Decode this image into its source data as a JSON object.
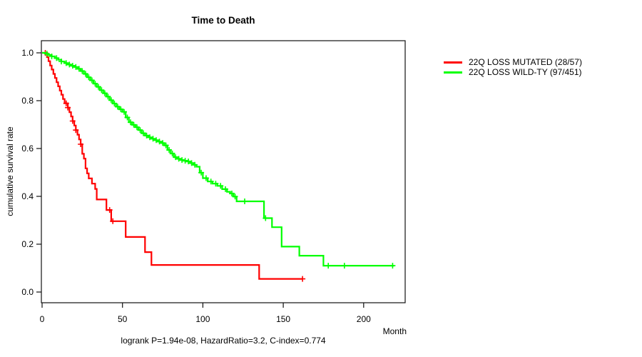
{
  "title": "Time to Death",
  "x_axis_label": "Month",
  "y_axis_label": "cumulative survival rate",
  "footer": "logrank P=1.94e-08, HazardRatio=3.2, C-index=0.774",
  "legend": [
    {
      "label": "22Q LOSS MUTATED (28/57)",
      "color": "#ff0000"
    },
    {
      "label": "22Q LOSS WILD-TY (97/451)",
      "color": "#00ff00"
    }
  ],
  "chart_data": {
    "type": "line",
    "subtype": "kaplan-meier-survival",
    "title": "Time to Death",
    "xlabel": "Month",
    "ylabel": "cumulative survival rate",
    "annotation": "logrank P=1.94e-08, HazardRatio=3.2, C-index=0.774",
    "xlim": [
      0,
      226
    ],
    "ylim": [
      0,
      1.0
    ],
    "x_ticks": [
      0,
      50,
      100,
      150,
      200
    ],
    "y_ticks": [
      0.0,
      0.2,
      0.4,
      0.6,
      0.8,
      1.0
    ],
    "grid": false,
    "legend_position": "right-outside",
    "series": [
      {
        "name": "22Q LOSS MUTATED (28/57)",
        "color": "#ff0000",
        "events_total": "28/57",
        "end_month": 162,
        "steps": [
          [
            0,
            1.0
          ],
          [
            3,
            0.982
          ],
          [
            4,
            0.965
          ],
          [
            5,
            0.947
          ],
          [
            6,
            0.93
          ],
          [
            7,
            0.912
          ],
          [
            8,
            0.895
          ],
          [
            9,
            0.877
          ],
          [
            10,
            0.86
          ],
          [
            11,
            0.842
          ],
          [
            12,
            0.825
          ],
          [
            13,
            0.807
          ],
          [
            14,
            0.789
          ],
          [
            16,
            0.771
          ],
          [
            17,
            0.752
          ],
          [
            18,
            0.734
          ],
          [
            19,
            0.715
          ],
          [
            20,
            0.696
          ],
          [
            21,
            0.677
          ],
          [
            22,
            0.658
          ],
          [
            23,
            0.638
          ],
          [
            24,
            0.618
          ],
          [
            25,
            0.578
          ],
          [
            26,
            0.558
          ],
          [
            27,
            0.517
          ],
          [
            28,
            0.496
          ],
          [
            29,
            0.475
          ],
          [
            31,
            0.453
          ],
          [
            33,
            0.431
          ],
          [
            34,
            0.387
          ],
          [
            40,
            0.343
          ],
          [
            43,
            0.296
          ],
          [
            52,
            0.23
          ],
          [
            64,
            0.167
          ],
          [
            68,
            0.113
          ],
          [
            135,
            0.055
          ]
        ],
        "censor_months": [
          2,
          15,
          16,
          19,
          21,
          24,
          42,
          44,
          162
        ]
      },
      {
        "name": "22Q LOSS WILD-TY (97/451)",
        "color": "#00ff00",
        "events_total": "97/451",
        "end_month": 219,
        "steps": [
          [
            0,
            1.0
          ],
          [
            2,
            0.996
          ],
          [
            4,
            0.991
          ],
          [
            6,
            0.985
          ],
          [
            8,
            0.978
          ],
          [
            10,
            0.971
          ],
          [
            12,
            0.964
          ],
          [
            14,
            0.957
          ],
          [
            16,
            0.951
          ],
          [
            18,
            0.946
          ],
          [
            20,
            0.941
          ],
          [
            22,
            0.933
          ],
          [
            24,
            0.924
          ],
          [
            26,
            0.912
          ],
          [
            28,
            0.898
          ],
          [
            30,
            0.885
          ],
          [
            32,
            0.871
          ],
          [
            34,
            0.858
          ],
          [
            36,
            0.844
          ],
          [
            38,
            0.831
          ],
          [
            40,
            0.817
          ],
          [
            42,
            0.802
          ],
          [
            44,
            0.788
          ],
          [
            46,
            0.775
          ],
          [
            48,
            0.764
          ],
          [
            50,
            0.753
          ],
          [
            52,
            0.73
          ],
          [
            54,
            0.71
          ],
          [
            56,
            0.699
          ],
          [
            58,
            0.689
          ],
          [
            60,
            0.677
          ],
          [
            62,
            0.664
          ],
          [
            64,
            0.654
          ],
          [
            66,
            0.647
          ],
          [
            68,
            0.641
          ],
          [
            70,
            0.635
          ],
          [
            72,
            0.629
          ],
          [
            74,
            0.623
          ],
          [
            76,
            0.613
          ],
          [
            78,
            0.594
          ],
          [
            80,
            0.579
          ],
          [
            82,
            0.564
          ],
          [
            84,
            0.557
          ],
          [
            86,
            0.552
          ],
          [
            88,
            0.549
          ],
          [
            90,
            0.546
          ],
          [
            92,
            0.539
          ],
          [
            94,
            0.532
          ],
          [
            96,
            0.524
          ],
          [
            98,
            0.499
          ],
          [
            100,
            0.476
          ],
          [
            103,
            0.462
          ],
          [
            106,
            0.453
          ],
          [
            109,
            0.444
          ],
          [
            112,
            0.43
          ],
          [
            115,
            0.419
          ],
          [
            117,
            0.412
          ],
          [
            119,
            0.399
          ],
          [
            121,
            0.379
          ],
          [
            138,
            0.309
          ],
          [
            143,
            0.271
          ],
          [
            149,
            0.19
          ],
          [
            160,
            0.152
          ],
          [
            175,
            0.11
          ]
        ],
        "censor_months": [
          3,
          6,
          9,
          12,
          15,
          17,
          19,
          21,
          23,
          25,
          27,
          29,
          31,
          33,
          35,
          37,
          39,
          41,
          43,
          45,
          47,
          49,
          51,
          53,
          55,
          57,
          59,
          61,
          63,
          65,
          67,
          69,
          71,
          73,
          75,
          77,
          79,
          81,
          83,
          85,
          87,
          89,
          91,
          93,
          95,
          99,
          102,
          105,
          108,
          111,
          114,
          118,
          120,
          126,
          139,
          178,
          188,
          218
        ]
      }
    ]
  }
}
